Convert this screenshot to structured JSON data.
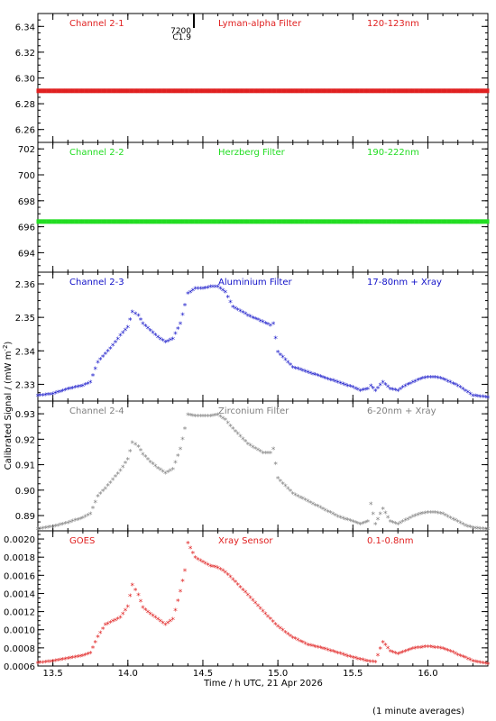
{
  "chart_data": {
    "type": "scatter",
    "xlabel": "Time / h UTC, 21 Apr 2026",
    "ylabel_main": "Calibrated Signal / (mW m",
    "ylabel_exp": "-2",
    "ylabel_close": ")",
    "footnote": "(1 minute averages)",
    "xlim": [
      13.4,
      16.4
    ],
    "xticks": [
      13.5,
      14.0,
      14.5,
      15.0,
      15.5,
      16.0
    ],
    "xtick_labels": [
      "13.5",
      "14.0",
      "14.5",
      "15.0",
      "15.5",
      "16.0"
    ],
    "marker_event": {
      "x": 14.38,
      "labels": [
        "7200",
        "C1.9"
      ]
    },
    "panels": [
      {
        "name": "Channel 2-1",
        "filter": "Lyman-alpha Filter",
        "band": "120-123nm",
        "color": "#e02020",
        "ylim": [
          6.25,
          6.35
        ],
        "yticks": [
          6.26,
          6.28,
          6.3,
          6.32,
          6.34
        ],
        "ytick_labels": [
          "6.26",
          "6.28",
          "6.30",
          "6.32",
          "6.34"
        ],
        "points": [
          [
            13.4,
            6.29
          ],
          [
            16.4,
            6.29
          ]
        ]
      },
      {
        "name": "Channel 2-2",
        "filter": "Herzberg Filter",
        "band": "190-222nm",
        "color": "#22dd22",
        "ylim": [
          692.5,
          702.5
        ],
        "yticks": [
          694,
          696,
          698,
          700,
          702
        ],
        "ytick_labels": [
          "694",
          "696",
          "698",
          "700",
          "702"
        ],
        "points": [
          [
            13.4,
            696.4
          ],
          [
            16.4,
            696.4
          ]
        ]
      },
      {
        "name": "Channel 2-3",
        "filter": "Aluminium Filter",
        "band": "17-80nm + Xray",
        "color": "#1010c8",
        "ylim": [
          2.325,
          2.3635
        ],
        "yticks": [
          2.33,
          2.34,
          2.35,
          2.36
        ],
        "ytick_labels": [
          "2.33",
          "2.34",
          "2.35",
          "2.36"
        ],
        "points": [
          [
            13.4,
            2.3265
          ],
          [
            13.5,
            2.327
          ],
          [
            13.6,
            2.3285
          ],
          [
            13.7,
            2.3295
          ],
          [
            13.75,
            2.3305
          ],
          [
            13.8,
            2.3365
          ],
          [
            13.85,
            2.339
          ],
          [
            13.9,
            2.3415
          ],
          [
            13.95,
            2.3445
          ],
          [
            14.0,
            2.347
          ],
          [
            14.03,
            2.3515
          ],
          [
            14.07,
            2.3505
          ],
          [
            14.1,
            2.348
          ],
          [
            14.15,
            2.346
          ],
          [
            14.2,
            2.344
          ],
          [
            14.25,
            2.3425
          ],
          [
            14.3,
            2.3435
          ],
          [
            14.35,
            2.348
          ],
          [
            14.38,
            2.3535
          ],
          [
            14.4,
            2.357
          ],
          [
            14.45,
            2.3585
          ],
          [
            14.5,
            2.3585
          ],
          [
            14.55,
            2.359
          ],
          [
            14.6,
            2.359
          ],
          [
            14.65,
            2.3575
          ],
          [
            14.7,
            2.353
          ],
          [
            14.8,
            2.3505
          ],
          [
            14.9,
            2.3485
          ],
          [
            14.95,
            2.3475
          ],
          [
            14.97,
            2.348
          ],
          [
            15.0,
            2.3395
          ],
          [
            15.1,
            2.335
          ],
          [
            15.2,
            2.3335
          ],
          [
            15.3,
            2.332
          ],
          [
            15.4,
            2.3305
          ],
          [
            15.5,
            2.329
          ],
          [
            15.55,
            2.328
          ],
          [
            15.6,
            2.3285
          ],
          [
            15.62,
            2.3295
          ],
          [
            15.65,
            2.328
          ],
          [
            15.7,
            2.3305
          ],
          [
            15.75,
            2.3285
          ],
          [
            15.8,
            2.328
          ],
          [
            15.85,
            2.3295
          ],
          [
            15.9,
            2.3305
          ],
          [
            15.95,
            2.3315
          ],
          [
            16.0,
            2.332
          ],
          [
            16.05,
            2.332
          ],
          [
            16.1,
            2.3315
          ],
          [
            16.15,
            2.3305
          ],
          [
            16.2,
            2.3295
          ],
          [
            16.25,
            2.328
          ],
          [
            16.3,
            2.3265
          ],
          [
            16.4,
            2.326
          ]
        ]
      },
      {
        "name": "Channel 2-4",
        "filter": "Zirconium Filter",
        "band": "6-20nm + Xray",
        "color": "#808080",
        "ylim": [
          0.884,
          0.935
        ],
        "yticks": [
          0.89,
          0.9,
          0.91,
          0.92,
          0.93
        ],
        "ytick_labels": [
          "0.89",
          "0.90",
          "0.91",
          "0.92",
          "0.93"
        ],
        "points": [
          [
            13.4,
            0.8845
          ],
          [
            13.5,
            0.8855
          ],
          [
            13.6,
            0.887
          ],
          [
            13.7,
            0.889
          ],
          [
            13.75,
            0.8905
          ],
          [
            13.8,
            0.8975
          ],
          [
            13.85,
            0.9005
          ],
          [
            13.9,
            0.904
          ],
          [
            13.95,
            0.9075
          ],
          [
            14.0,
            0.912
          ],
          [
            14.03,
            0.9185
          ],
          [
            14.07,
            0.917
          ],
          [
            14.1,
            0.914
          ],
          [
            14.15,
            0.911
          ],
          [
            14.2,
            0.9085
          ],
          [
            14.25,
            0.9065
          ],
          [
            14.3,
            0.908
          ],
          [
            14.35,
            0.916
          ],
          [
            14.38,
            0.924
          ],
          [
            14.4,
            0.9295
          ],
          [
            14.45,
            0.929
          ],
          [
            14.5,
            0.929
          ],
          [
            14.55,
            0.929
          ],
          [
            14.6,
            0.9295
          ],
          [
            14.65,
            0.9275
          ],
          [
            14.7,
            0.924
          ],
          [
            14.8,
            0.918
          ],
          [
            14.9,
            0.9145
          ],
          [
            14.95,
            0.9145
          ],
          [
            14.97,
            0.916
          ],
          [
            15.0,
            0.9045
          ],
          [
            15.1,
            0.8985
          ],
          [
            15.2,
            0.8955
          ],
          [
            15.3,
            0.8925
          ],
          [
            15.4,
            0.8895
          ],
          [
            15.5,
            0.8875
          ],
          [
            15.55,
            0.8865
          ],
          [
            15.6,
            0.8875
          ],
          [
            15.62,
            0.8945
          ],
          [
            15.65,
            0.8865
          ],
          [
            15.7,
            0.8925
          ],
          [
            15.75,
            0.8875
          ],
          [
            15.8,
            0.8865
          ],
          [
            15.85,
            0.888
          ],
          [
            15.9,
            0.8895
          ],
          [
            15.95,
            0.8905
          ],
          [
            16.0,
            0.891
          ],
          [
            16.05,
            0.891
          ],
          [
            16.1,
            0.8905
          ],
          [
            16.15,
            0.889
          ],
          [
            16.2,
            0.8875
          ],
          [
            16.25,
            0.886
          ],
          [
            16.3,
            0.885
          ],
          [
            16.4,
            0.8845
          ]
        ]
      },
      {
        "name": "GOES",
        "filter": "Xray Sensor",
        "band": "0.1-0.8nm",
        "color": "#e02020",
        "ylim": [
          0.0006,
          0.00209
        ],
        "yticks": [
          0.0006,
          0.0008,
          0.001,
          0.0012,
          0.0014,
          0.0016,
          0.0018,
          0.002
        ],
        "ytick_labels": [
          "0.0006",
          "0.0008",
          "0.0010",
          "0.0012",
          "0.0014",
          "0.0016",
          "0.0018",
          "0.0020"
        ],
        "points": [
          [
            13.4,
            0.00063
          ],
          [
            13.5,
            0.00065
          ],
          [
            13.6,
            0.00068
          ],
          [
            13.7,
            0.00071
          ],
          [
            13.75,
            0.00074
          ],
          [
            13.8,
            0.00092
          ],
          [
            13.85,
            0.00105
          ],
          [
            13.9,
            0.00109
          ],
          [
            13.95,
            0.00113
          ],
          [
            14.0,
            0.00125
          ],
          [
            14.03,
            0.00149
          ],
          [
            14.07,
            0.00138
          ],
          [
            14.1,
            0.00124
          ],
          [
            14.15,
            0.00117
          ],
          [
            14.2,
            0.00111
          ],
          [
            14.25,
            0.00105
          ],
          [
            14.3,
            0.00111
          ],
          [
            14.35,
            0.00142
          ],
          [
            14.38,
            0.00165
          ],
          [
            14.4,
            0.00195
          ],
          [
            14.45,
            0.00179
          ],
          [
            14.5,
            0.00174
          ],
          [
            14.55,
            0.0017
          ],
          [
            14.6,
            0.00168
          ],
          [
            14.65,
            0.00163
          ],
          [
            14.7,
            0.00155
          ],
          [
            14.8,
            0.00138
          ],
          [
            14.9,
            0.0012
          ],
          [
            15.0,
            0.00103
          ],
          [
            15.1,
            0.00091
          ],
          [
            15.2,
            0.00083
          ],
          [
            15.3,
            0.00079
          ],
          [
            15.4,
            0.00074
          ],
          [
            15.5,
            0.00069
          ],
          [
            15.6,
            0.00065
          ],
          [
            15.65,
            0.00064
          ],
          [
            15.7,
            0.00086
          ],
          [
            15.75,
            0.00076
          ],
          [
            15.8,
            0.00073
          ],
          [
            15.85,
            0.00076
          ],
          [
            15.9,
            0.00079
          ],
          [
            15.95,
            0.0008
          ],
          [
            16.0,
            0.00081
          ],
          [
            16.05,
            0.0008
          ],
          [
            16.1,
            0.00079
          ],
          [
            16.15,
            0.00076
          ],
          [
            16.2,
            0.00072
          ],
          [
            16.25,
            0.00069
          ],
          [
            16.3,
            0.00065
          ],
          [
            16.4,
            0.00062
          ]
        ]
      }
    ]
  }
}
